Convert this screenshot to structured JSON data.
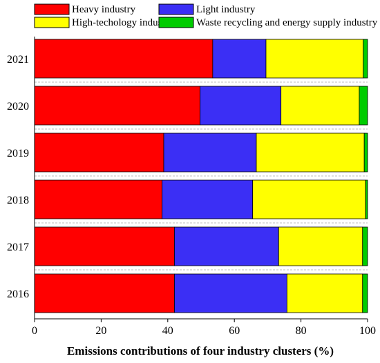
{
  "chart_data": {
    "type": "bar",
    "orientation": "horizontal",
    "stacked": true,
    "categories": [
      "2021",
      "2020",
      "2019",
      "2018",
      "2017",
      "2016"
    ],
    "series": [
      {
        "name": "Heavy industry",
        "color": "#ff0000",
        "values": [
          53.5,
          49.7,
          38.8,
          38.3,
          42,
          42
        ]
      },
      {
        "name": "Light industry",
        "color": "#3b2ff5",
        "values": [
          16,
          24.3,
          27.8,
          27.2,
          31.3,
          33.8
        ]
      },
      {
        "name": "High-techology industry",
        "color": "#ffff00",
        "values": [
          29.2,
          23.5,
          32.4,
          33.9,
          25.2,
          22.7
        ]
      },
      {
        "name": "Waste recycling and energy supply industry",
        "color": "#00cc00",
        "values": [
          1.3,
          2.5,
          1,
          0.6,
          1.5,
          1.5
        ]
      }
    ],
    "xlabel": "Emissions contributions of four industry clusters (%)",
    "ylabel": "",
    "xlim": [
      0,
      100
    ],
    "xticks": [
      "0",
      "20",
      "40",
      "60",
      "80",
      "100"
    ],
    "grid": false,
    "legend_position": "top"
  }
}
